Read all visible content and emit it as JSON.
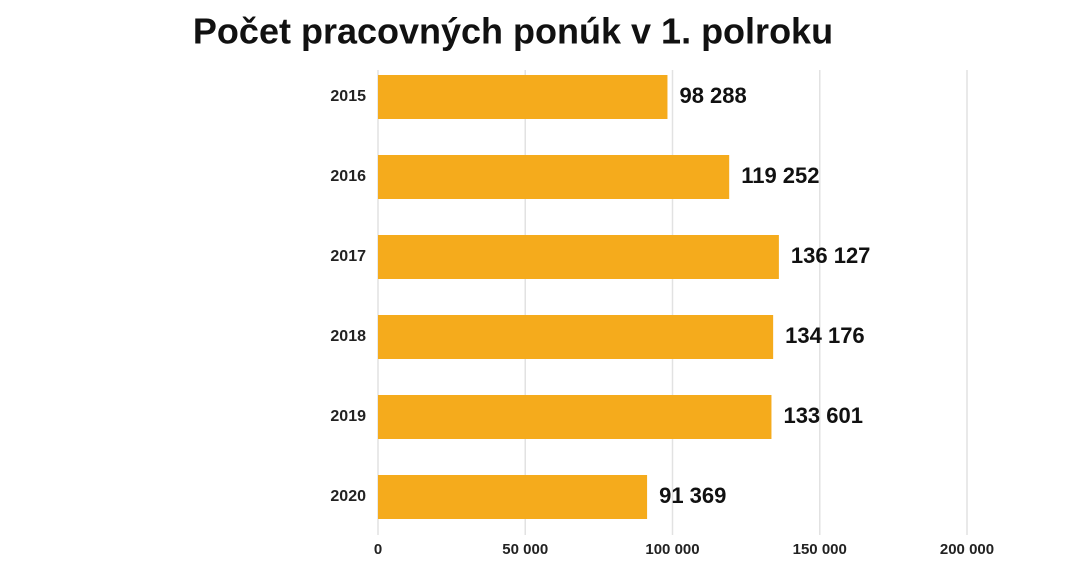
{
  "chart_data": {
    "type": "hbar",
    "title": "Počet pracovných ponúk v 1. polroku",
    "categories": [
      "2015",
      "2016",
      "2017",
      "2018",
      "2019",
      "2020"
    ],
    "values": [
      98288,
      119252,
      136127,
      134176,
      133601,
      91369
    ],
    "value_labels": [
      "98 288",
      "119 252",
      "136 127",
      "134 176",
      "133 601",
      "91 369"
    ],
    "color": "#f5ab1c",
    "xlim": [
      0,
      200000
    ],
    "xticks": [
      0,
      {
        "value": 50000,
        "label": "50 000"
      },
      {
        "value": 100000,
        "label": "100 000"
      },
      {
        "value": 150000,
        "label": "150 000"
      },
      {
        "value": 200000,
        "label": "200 000"
      }
    ],
    "grid": true
  }
}
